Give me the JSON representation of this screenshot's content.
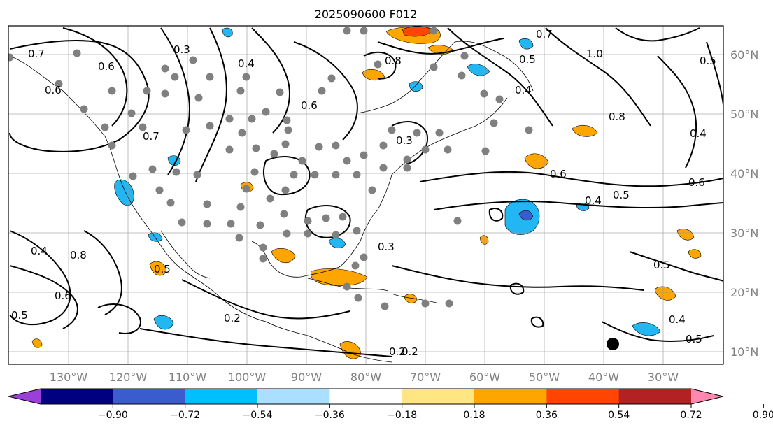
{
  "title": "2025090600 F012",
  "lon_labels": [
    "130°W",
    "120°W",
    "110°W",
    "100°W",
    "90°W",
    "80°W",
    "70°W",
    "60°W",
    "50°W",
    "40°W",
    "30°W"
  ],
  "lat_labels": [
    "60°N",
    "50°N",
    "40°N",
    "30°N",
    "20°N",
    "10°N"
  ],
  "colorbar": {
    "tick_labels": [
      "−0.90",
      "−0.72",
      "−0.54",
      "−0.36",
      "−0.18",
      "0.18",
      "0.36",
      "0.54",
      "0.72",
      "0.90"
    ],
    "colors": [
      "#9a3fd8",
      "#000080",
      "#3b5ccc",
      "#00bfff",
      "#aadfff",
      "#ffffff",
      "#ffe680",
      "#ffa500",
      "#ff4500",
      "#b22222",
      "#ff88b0"
    ]
  },
  "fill_colors": {
    "orange": "#ffa500",
    "red": "#ff4500",
    "cyan": "#22b7f2",
    "blue": "#3b5ccc"
  },
  "contour_labels": [
    "0.7",
    "0.3",
    "0.4",
    "0.6",
    "0.7",
    "0.6",
    "0.8",
    "0.7",
    "1.0",
    "0.8",
    "0.4",
    "0.2",
    "0.3",
    "0.4",
    "0.5",
    "0.6",
    "0.5",
    "0.4",
    "0.8",
    "0.5",
    "0.6",
    "0.3",
    "0.2",
    "0.2",
    "0.5",
    "0.5",
    "0.4",
    "0.4",
    "0.5",
    "0.5",
    "0.6",
    "0.6"
  ],
  "marker_color": "#808080"
}
